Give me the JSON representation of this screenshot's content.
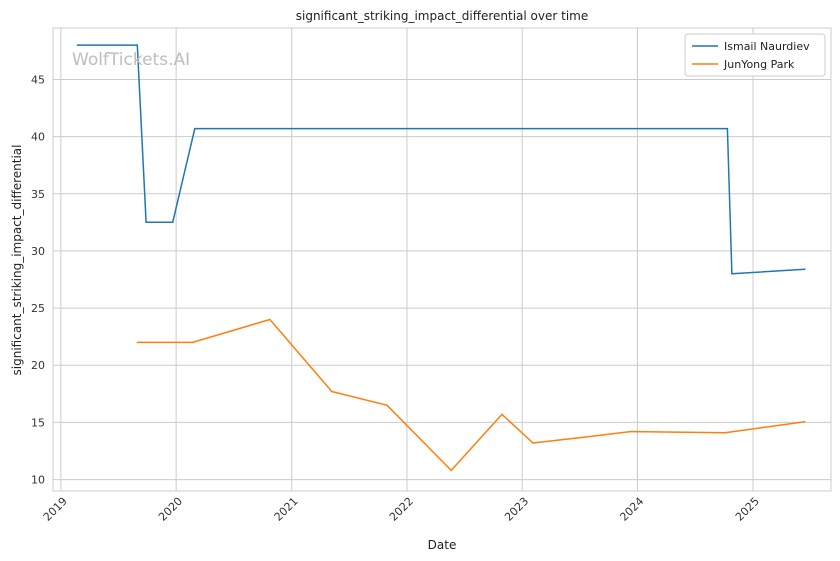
{
  "chart_data": {
    "type": "line",
    "title": "significant_striking_impact_differential over time",
    "xlabel": "Date",
    "ylabel": "significant_striking_impact_differential",
    "watermark": "WolfTickets.AI",
    "x_tick_labels": [
      "2019",
      "2020",
      "2021",
      "2022",
      "2023",
      "2024",
      "2025"
    ],
    "y_tick_labels": [
      "10",
      "15",
      "20",
      "25",
      "30",
      "35",
      "40",
      "45"
    ],
    "xlim": [
      "2018-12-07",
      "2025-09-05"
    ],
    "ylim": [
      9.0,
      49.5
    ],
    "grid": true,
    "legend_position": "top-right",
    "series": [
      {
        "name": "Ismail Naurdiev",
        "color": "#1f77b4",
        "points": [
          [
            "2019-02-23",
            48.0
          ],
          [
            "2019-08-31",
            48.0
          ],
          [
            "2019-09-28",
            32.5
          ],
          [
            "2019-12-21",
            32.5
          ],
          [
            "2020-02-29",
            40.7
          ],
          [
            "2024-10-12",
            40.7
          ],
          [
            "2024-10-26",
            28.0
          ],
          [
            "2025-06-14",
            28.4
          ]
        ]
      },
      {
        "name": "JunYong Park",
        "color": "#ff7f0e",
        "points": [
          [
            "2019-08-31",
            22.0
          ],
          [
            "2020-02-22",
            22.0
          ],
          [
            "2020-10-24",
            24.0
          ],
          [
            "2021-05-08",
            17.7
          ],
          [
            "2021-10-30",
            16.5
          ],
          [
            "2022-05-21",
            10.8
          ],
          [
            "2022-10-29",
            15.7
          ],
          [
            "2023-02-04",
            13.2
          ],
          [
            "2023-07-15",
            13.7
          ],
          [
            "2023-12-09",
            14.2
          ],
          [
            "2024-10-05",
            14.1
          ],
          [
            "2025-06-14",
            15.05
          ]
        ]
      }
    ]
  }
}
